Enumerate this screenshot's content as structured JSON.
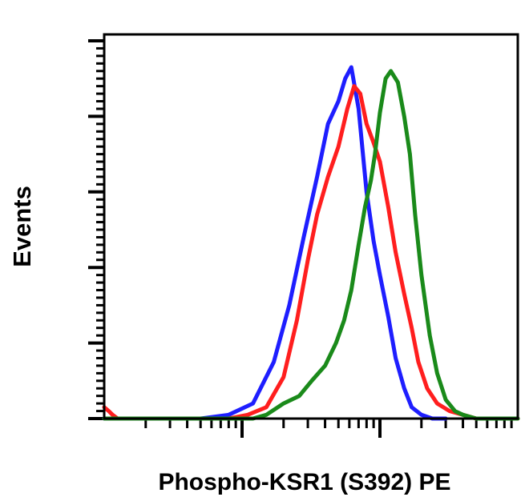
{
  "chart_data": {
    "type": "line",
    "title": "",
    "xlabel": "Phospho-KSR1 (S392) PE",
    "ylabel": "Events",
    "x_scale": "log",
    "xlim": [
      10,
      10000
    ],
    "ylim": [
      0,
      100
    ],
    "grid": false,
    "legend": "none",
    "series": [
      {
        "color": "#1e1eff",
        "x": [
          10,
          50,
          80,
          120,
          170,
          220,
          280,
          350,
          420,
          500,
          560,
          620,
          700,
          800,
          900,
          1000,
          1150,
          1300,
          1500,
          1700,
          2000,
          2400,
          3000
        ],
        "y": [
          0,
          0,
          1,
          4,
          15,
          30,
          48,
          64,
          78,
          84,
          90,
          93,
          82,
          60,
          47,
          38,
          27,
          16,
          8,
          3,
          1,
          0,
          0
        ]
      },
      {
        "color": "#ff1e1e",
        "x": [
          10,
          10.8,
          11.5,
          12.5,
          20,
          80,
          110,
          150,
          200,
          250,
          300,
          350,
          420,
          500,
          580,
          650,
          720,
          800,
          900,
          1000,
          1150,
          1300,
          1500,
          1700,
          1900,
          2200,
          2600,
          3200,
          4000,
          5000,
          10000
        ],
        "y": [
          3,
          2,
          1,
          0,
          0,
          0,
          1,
          3,
          11,
          26,
          42,
          54,
          64,
          72,
          82,
          88,
          86,
          78,
          73,
          68,
          56,
          44,
          33,
          24,
          15,
          8,
          4,
          2,
          1,
          0,
          0
        ]
      },
      {
        "color": "#1a8a1a",
        "x": [
          10,
          80,
          120,
          150,
          200,
          260,
          320,
          400,
          480,
          550,
          620,
          700,
          780,
          860,
          920,
          1000,
          1100,
          1200,
          1350,
          1500,
          1650,
          1800,
          2000,
          2300,
          2600,
          3000,
          3500,
          4000,
          5000,
          10000
        ],
        "y": [
          0,
          0,
          0,
          1,
          4,
          6,
          10,
          14,
          20,
          26,
          34,
          46,
          56,
          63,
          70,
          81,
          90,
          92,
          89,
          80,
          70,
          54,
          38,
          22,
          12,
          5,
          2,
          1,
          0,
          0
        ]
      }
    ]
  }
}
